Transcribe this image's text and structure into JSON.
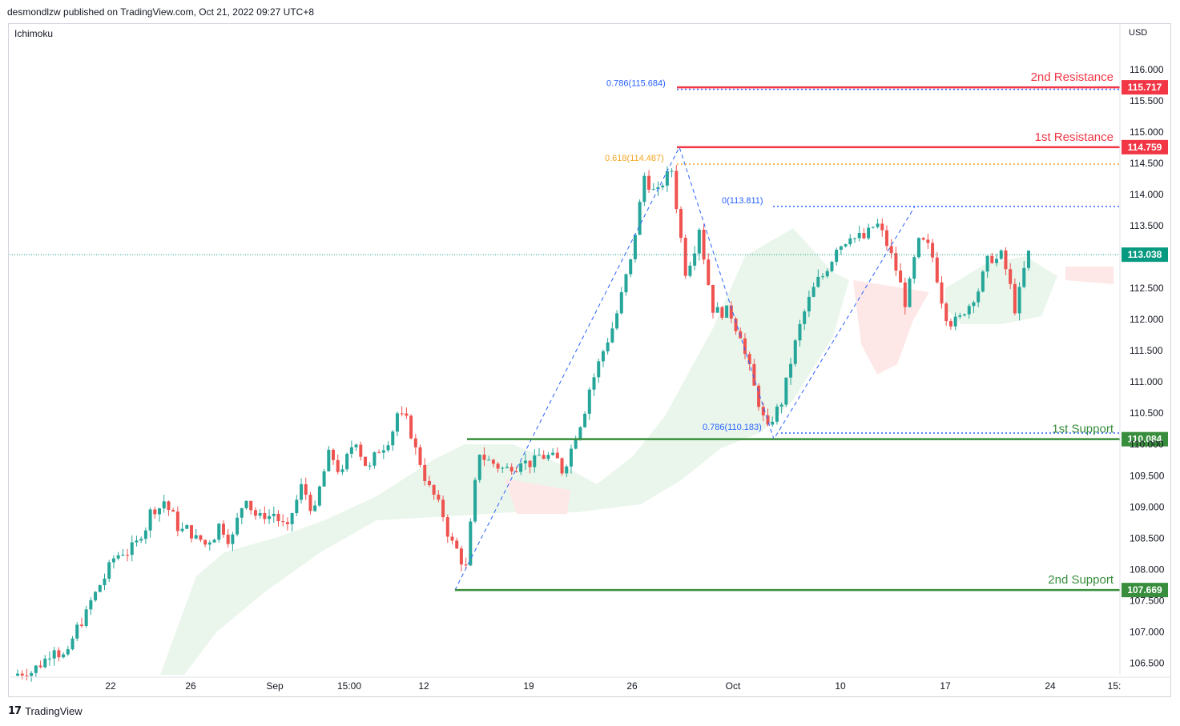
{
  "header": {
    "publish_line": "desmondlzw published on TradingView.com, Oct 21, 2022 09:27 UTC+8"
  },
  "indicator_label": "Ichimoku",
  "currency_label": "USD",
  "footer": {
    "brand": "TradingView",
    "logo_glyph": "17"
  },
  "colors": {
    "up": "#26a69a",
    "down": "#ef5350",
    "resistance": "#f23645",
    "support": "#388e3c",
    "fib_blue": "#2962ff",
    "fib_orange": "#f5a623",
    "kumo_green": "#e8f5e9",
    "kumo_red": "#fde8e7",
    "last_price": "#089981"
  },
  "chart_data": {
    "type": "candlestick",
    "ylim": [
      106.25,
      116.5
    ],
    "y_ticks": [
      "116.000",
      "115.500",
      "115.000",
      "114.500",
      "114.000",
      "113.500",
      "113.000",
      "112.500",
      "112.000",
      "111.500",
      "111.000",
      "110.500",
      "110.000",
      "109.500",
      "109.000",
      "108.500",
      "108.000",
      "107.500",
      "107.000",
      "106.500"
    ],
    "x_ticks": [
      "22",
      "26",
      "Sep",
      "15:00",
      "12",
      "19",
      "26",
      "Oct",
      "10",
      "17",
      "24",
      "15:"
    ],
    "last_price": "113.038",
    "levels": [
      {
        "name": "2nd Resistance",
        "value": "115.717",
        "kind": "resistance"
      },
      {
        "name": "1st Resistance",
        "value": "114.759",
        "kind": "resistance"
      },
      {
        "name": "1st Support",
        "value": "110.084",
        "kind": "support"
      },
      {
        "name": "2nd Support",
        "value": "107.669",
        "kind": "support"
      }
    ],
    "fib_levels": [
      {
        "label": "0.786(115.684)",
        "value": 115.684,
        "color": "blue"
      },
      {
        "label": "0.618(114.487)",
        "value": 114.487,
        "color": "orange"
      },
      {
        "label": "0(113.811)",
        "value": 113.811,
        "color": "blue"
      },
      {
        "label": "0.786(110.183)",
        "value": 110.183,
        "color": "blue"
      }
    ],
    "swing_points": [
      107.669,
      114.759,
      110.084,
      113.811
    ],
    "close_path": [
      106.4,
      106.5,
      106.8,
      106.6,
      107.2,
      107.6,
      108.0,
      108.3,
      108.4,
      108.9,
      109.1,
      108.7,
      108.6,
      108.4,
      108.7,
      108.5,
      109.2,
      108.8,
      108.9,
      108.6,
      109.3,
      108.9,
      109.8,
      109.5,
      110.1,
      109.6,
      110.0,
      110.5,
      110.2,
      109.5,
      109.0,
      108.4,
      108.0,
      109.9,
      109.7,
      109.6,
      109.8,
      109.7,
      109.8,
      109.6,
      110.2,
      110.9,
      111.5,
      112.1,
      112.9,
      114.3,
      114.0,
      114.4,
      112.8,
      113.5,
      112.2,
      112.1,
      111.8,
      110.9,
      110.2,
      110.7,
      111.6,
      112.3,
      112.7,
      113.2,
      113.4,
      113.3,
      113.5,
      113.0,
      112.3,
      113.2,
      113.0,
      112.1,
      112.0,
      112.4,
      112.9,
      113.0,
      112.2,
      113.04
    ]
  }
}
